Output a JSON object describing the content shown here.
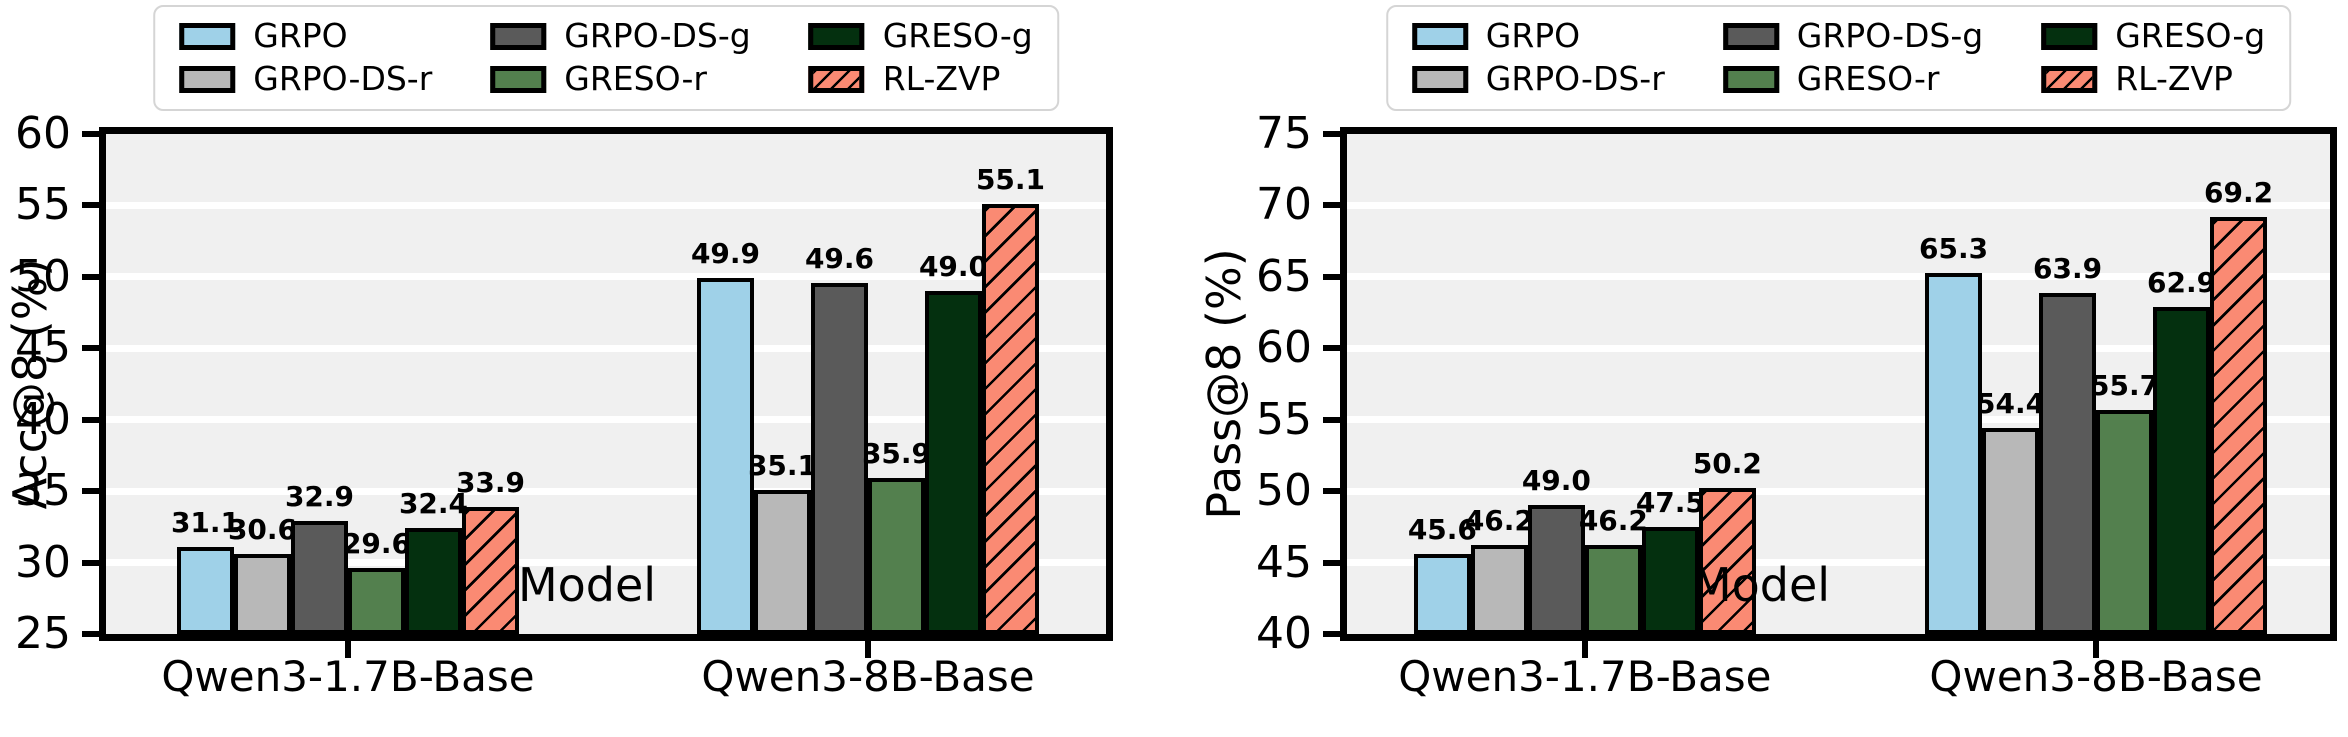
{
  "figure": {
    "legend": {
      "items": [
        {
          "label": "GRPO",
          "color": "#9fd1e8",
          "hatch": false
        },
        {
          "label": "GRPO-DS-r",
          "color": "#b8b8b8",
          "hatch": false
        },
        {
          "label": "GRPO-DS-g",
          "color": "#5a5a5a",
          "hatch": false
        },
        {
          "label": "GRESO-r",
          "color": "#53804e",
          "hatch": false
        },
        {
          "label": "GRESO-g",
          "color": "#04300f",
          "hatch": false
        },
        {
          "label": "RL-ZVP",
          "color": "#fa8a73",
          "hatch": true
        }
      ]
    },
    "style": {
      "plot_background": "#f0f0f0",
      "gridline_color": "#ffffff",
      "bar_edge_color": "#000000",
      "hatch_color": "#000000",
      "text_color": "#000000"
    }
  },
  "chart_data": [
    {
      "type": "bar",
      "title": "",
      "xlabel": "Model",
      "ylabel": "Acc@8 (%)",
      "categories": [
        "Qwen3-1.7B-Base",
        "Qwen3-8B-Base"
      ],
      "series": [
        {
          "name": "GRPO",
          "values": [
            31.1,
            49.9
          ]
        },
        {
          "name": "GRPO-DS-r",
          "values": [
            30.6,
            35.1
          ]
        },
        {
          "name": "GRPO-DS-g",
          "values": [
            32.9,
            49.6
          ]
        },
        {
          "name": "GRESO-r",
          "values": [
            29.6,
            35.9
          ]
        },
        {
          "name": "GRESO-g",
          "values": [
            32.4,
            49.0
          ]
        },
        {
          "name": "RL-ZVP",
          "values": [
            33.9,
            55.1
          ]
        }
      ],
      "ylim": [
        25,
        60
      ],
      "yticks": [
        25,
        30,
        35,
        40,
        45,
        50,
        55,
        60
      ],
      "grid": true,
      "bar_value_labels": true,
      "legend_position": "top-center"
    },
    {
      "type": "bar",
      "title": "",
      "xlabel": "Model",
      "ylabel": "Pass@8 (%)",
      "categories": [
        "Qwen3-1.7B-Base",
        "Qwen3-8B-Base"
      ],
      "series": [
        {
          "name": "GRPO",
          "values": [
            45.6,
            65.3
          ]
        },
        {
          "name": "GRPO-DS-r",
          "values": [
            46.2,
            54.4
          ]
        },
        {
          "name": "GRPO-DS-g",
          "values": [
            49.0,
            63.9
          ]
        },
        {
          "name": "GRESO-r",
          "values": [
            46.2,
            55.7
          ]
        },
        {
          "name": "GRESO-g",
          "values": [
            47.5,
            62.9
          ]
        },
        {
          "name": "RL-ZVP",
          "values": [
            50.2,
            69.2
          ]
        }
      ],
      "ylim": [
        40,
        75
      ],
      "yticks": [
        40,
        45,
        50,
        55,
        60,
        65,
        70,
        75
      ],
      "grid": true,
      "bar_value_labels": true,
      "legend_position": "top-center"
    }
  ]
}
